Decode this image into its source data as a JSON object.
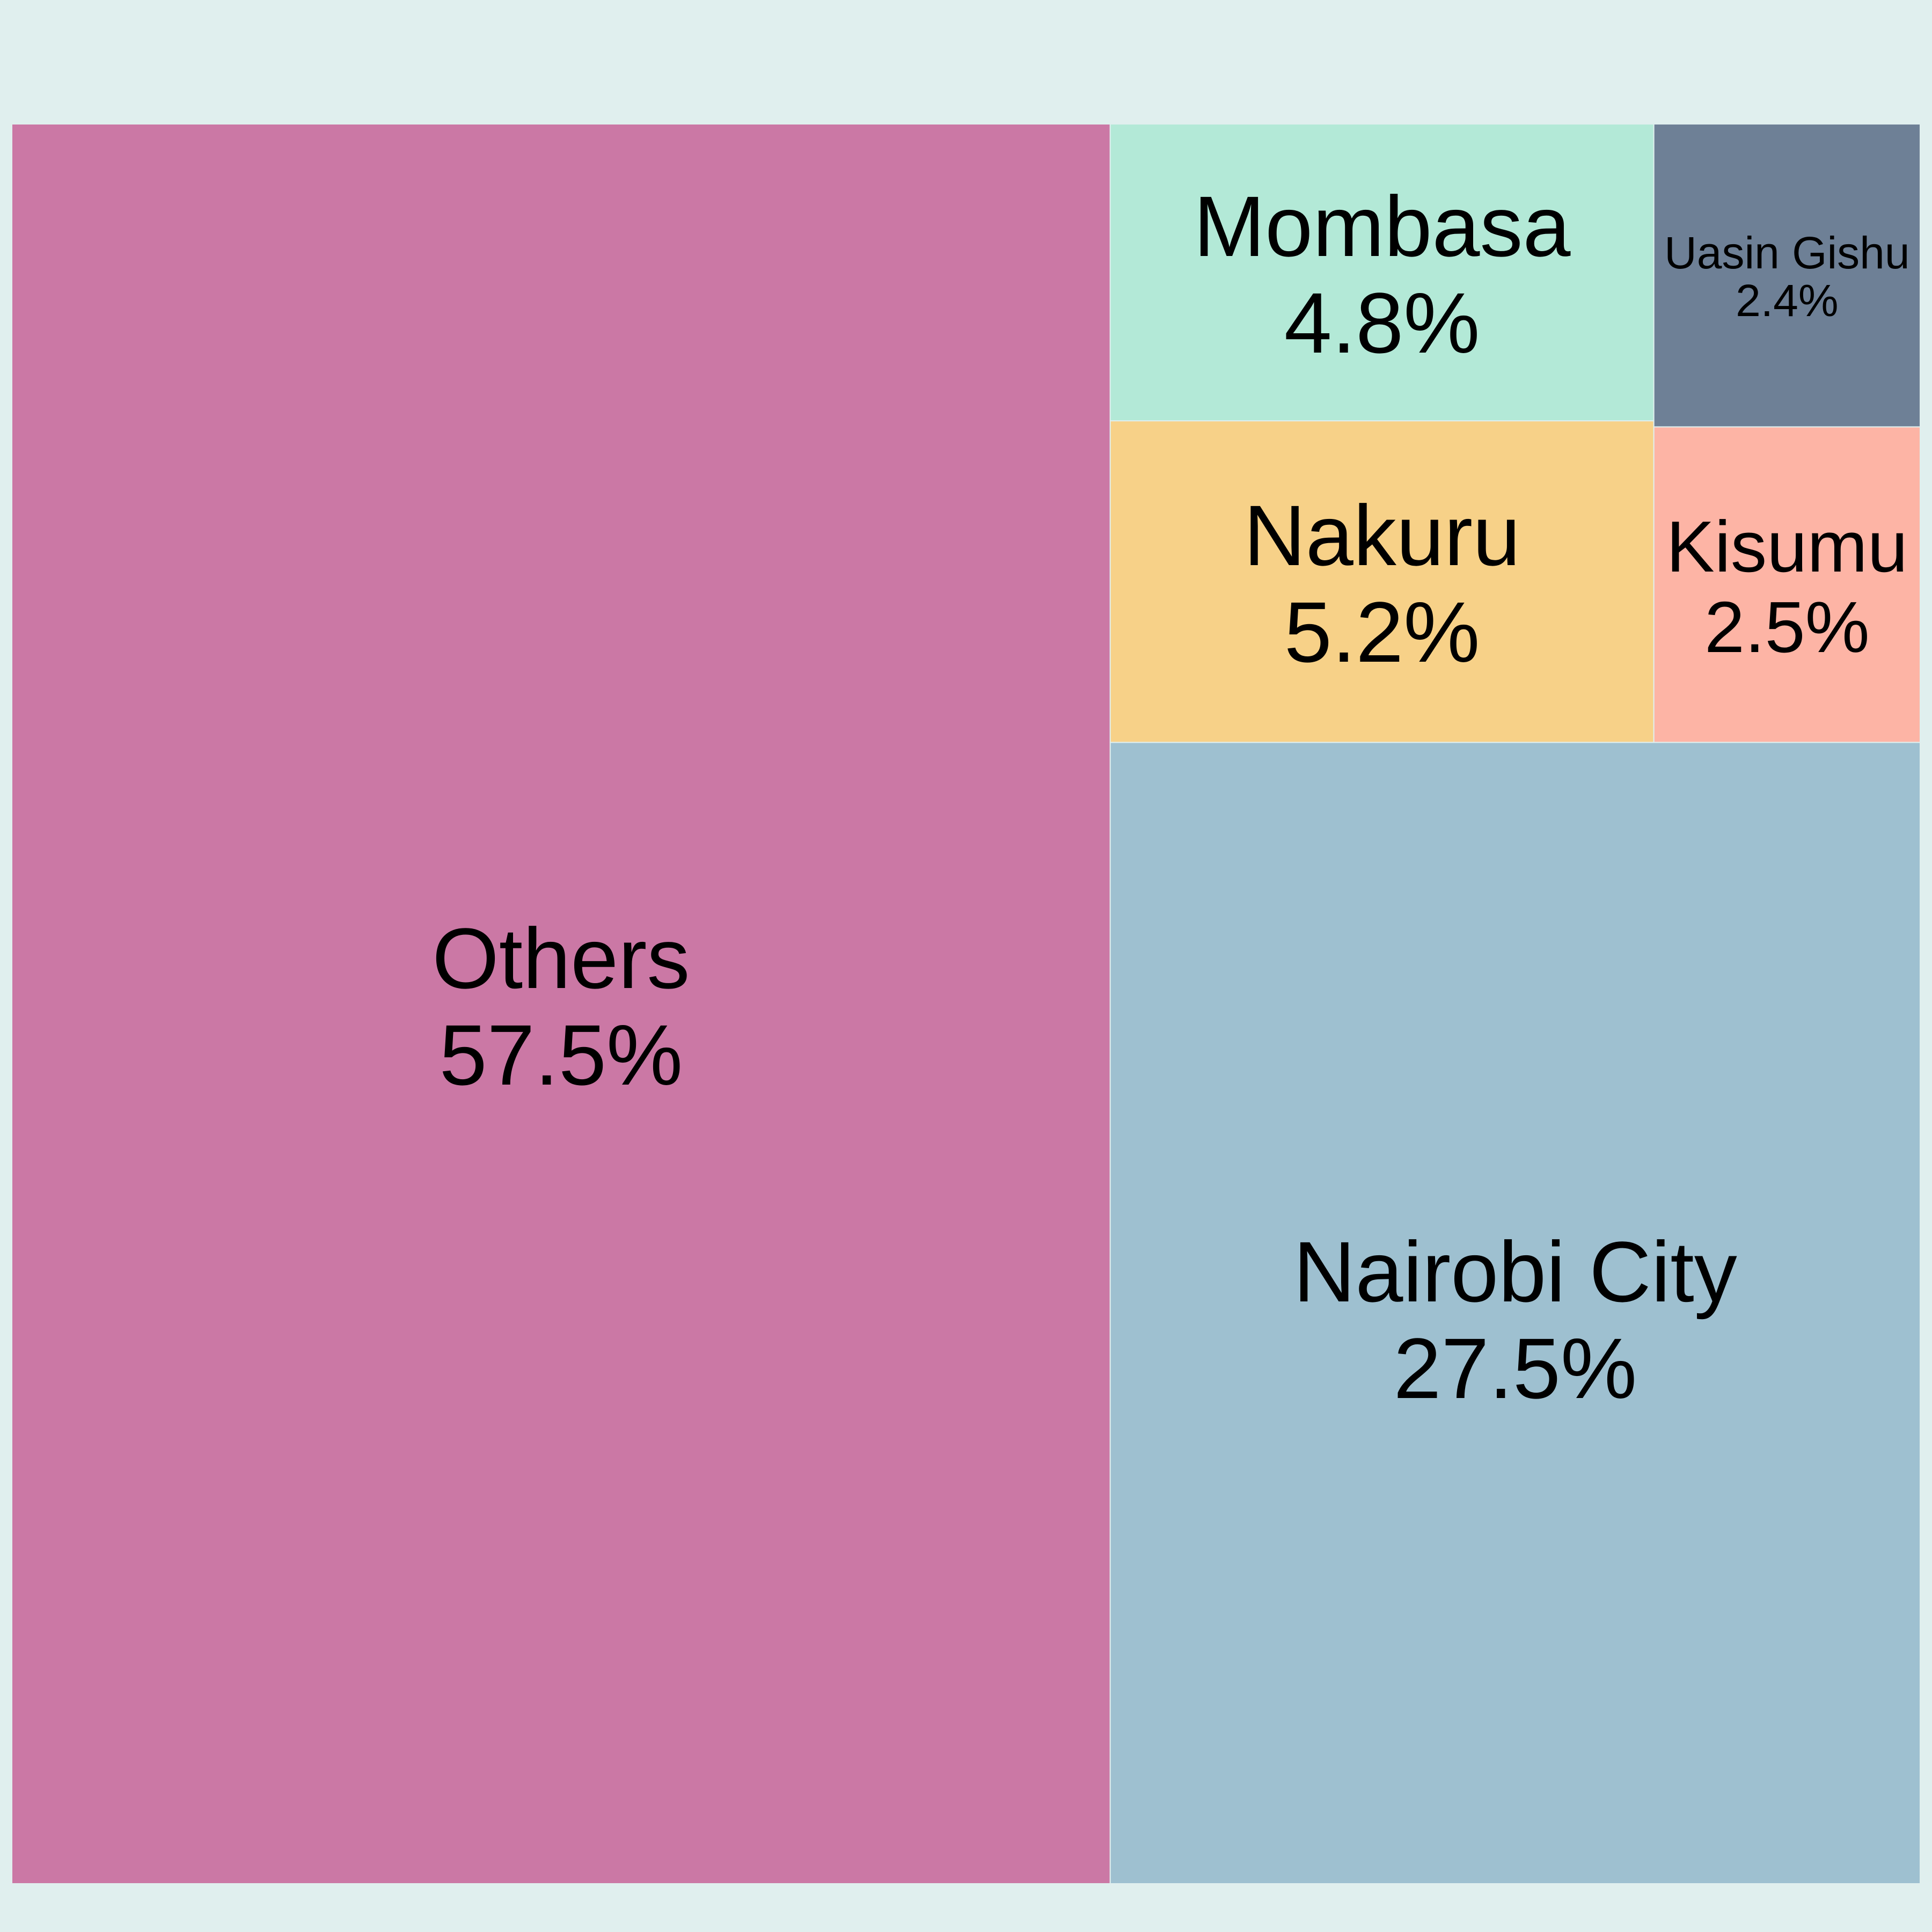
{
  "chart_data": {
    "type": "treemap",
    "title": "",
    "background_color": "#e0efee",
    "tiles": [
      {
        "name": "Others",
        "label": "57.5%",
        "value": 57.5,
        "color": "#cb78a5"
      },
      {
        "name": "Nairobi City",
        "label": "27.5%",
        "value": 27.5,
        "color": "#9ec0d0"
      },
      {
        "name": "Nakuru",
        "label": "5.2%",
        "value": 5.2,
        "color": "#f7d188"
      },
      {
        "name": "Mombasa",
        "label": "4.8%",
        "value": 4.8,
        "color": "#b3e9d7"
      },
      {
        "name": "Kisumu",
        "label": "2.5%",
        "value": 2.5,
        "color": "#fdb4a5"
      },
      {
        "name": "Uasin Gishu",
        "label": "2.4%",
        "value": 2.4,
        "color": "#6e8096"
      }
    ]
  }
}
